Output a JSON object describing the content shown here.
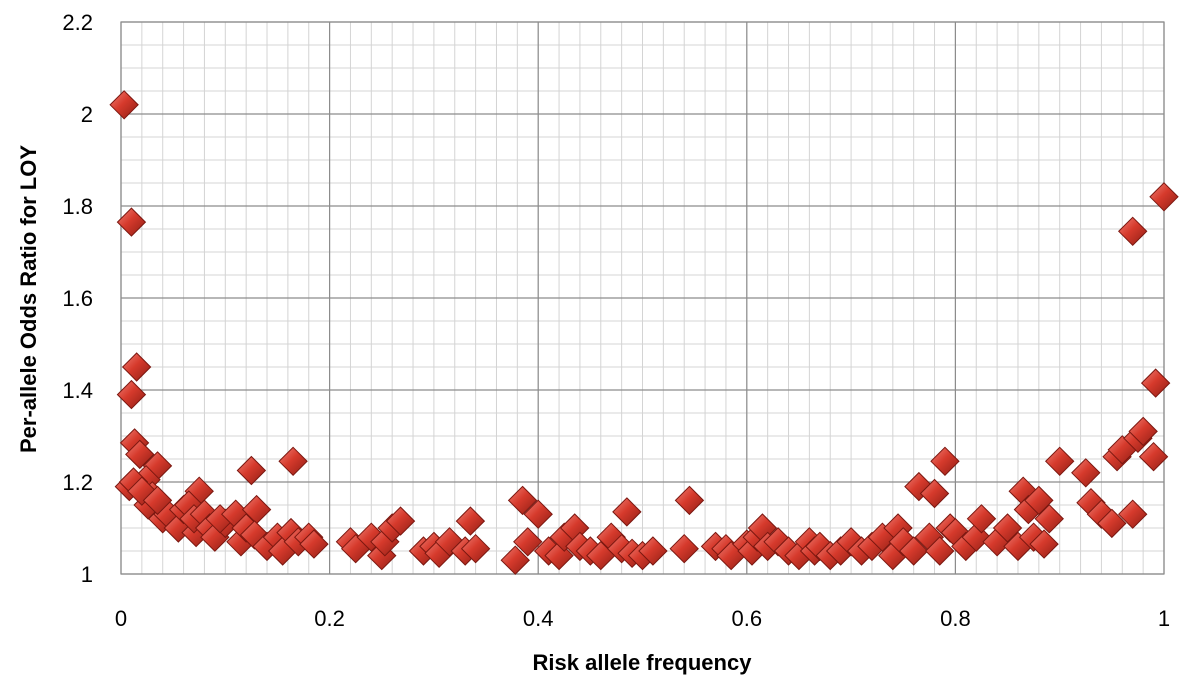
{
  "chart_data": {
    "type": "scatter",
    "title": "",
    "xlabel": "Risk allele frequency",
    "ylabel": "Per-allele Odds Ratio for LOY",
    "xlim": [
      0,
      1
    ],
    "ylim": [
      1,
      2.2
    ],
    "x_ticks": [
      0,
      0.2,
      0.4,
      0.6,
      0.8,
      1
    ],
    "x_tick_labels": [
      "0",
      "0.2",
      "0.4",
      "0.6",
      "0.8",
      "1"
    ],
    "y_ticks": [
      1,
      1.2,
      1.4,
      1.6,
      1.8,
      2,
      2.2
    ],
    "y_tick_labels": [
      "1",
      "1.2",
      "1.4",
      "1.6",
      "1.8",
      "2",
      "2.2"
    ],
    "grid": true,
    "minor_grid": true,
    "legend": "none",
    "marker": "diamond",
    "marker_color": "#c0392b",
    "series": [
      {
        "x": [
          0.003,
          0.01,
          0.015,
          0.01,
          0.013,
          0.008,
          0.018,
          0.035,
          0.024,
          0.012,
          0.03,
          0.026,
          0.02,
          0.04,
          0.045,
          0.035,
          0.055,
          0.06,
          0.075,
          0.072,
          0.065,
          0.07,
          0.08,
          0.085,
          0.09,
          0.1,
          0.095,
          0.11,
          0.115,
          0.125,
          0.12,
          0.13,
          0.128,
          0.14,
          0.15,
          0.155,
          0.163,
          0.165,
          0.17,
          0.18,
          0.185,
          0.22,
          0.225,
          0.24,
          0.25,
          0.253,
          0.26,
          0.268,
          0.29,
          0.3,
          0.305,
          0.315,
          0.33,
          0.335,
          0.34,
          0.378,
          0.385,
          0.39,
          0.4,
          0.41,
          0.42,
          0.425,
          0.435,
          0.44,
          0.45,
          0.46,
          0.47,
          0.48,
          0.485,
          0.49,
          0.5,
          0.51,
          0.54,
          0.545,
          0.57,
          0.58,
          0.585,
          0.6,
          0.605,
          0.61,
          0.615,
          0.62,
          0.63,
          0.64,
          0.65,
          0.66,
          0.665,
          0.67,
          0.68,
          0.69,
          0.7,
          0.71,
          0.72,
          0.73,
          0.74,
          0.745,
          0.75,
          0.76,
          0.765,
          0.775,
          0.78,
          0.785,
          0.79,
          0.795,
          0.8,
          0.81,
          0.82,
          0.825,
          0.84,
          0.85,
          0.86,
          0.865,
          0.87,
          0.875,
          0.88,
          0.885,
          0.89,
          0.9,
          0.925,
          0.93,
          0.94,
          0.95,
          0.955,
          0.96,
          0.97,
          0.97,
          0.975,
          0.98,
          0.99,
          0.992,
          1.0
        ],
        "y": [
          2.02,
          1.765,
          1.45,
          1.39,
          1.285,
          1.19,
          1.26,
          1.235,
          1.205,
          1.2,
          1.17,
          1.15,
          1.18,
          1.12,
          1.13,
          1.16,
          1.1,
          1.14,
          1.18,
          1.09,
          1.15,
          1.12,
          1.13,
          1.1,
          1.08,
          1.11,
          1.12,
          1.13,
          1.07,
          1.225,
          1.1,
          1.14,
          1.085,
          1.06,
          1.08,
          1.05,
          1.09,
          1.245,
          1.07,
          1.08,
          1.065,
          1.07,
          1.055,
          1.08,
          1.04,
          1.07,
          1.1,
          1.115,
          1.05,
          1.06,
          1.045,
          1.07,
          1.05,
          1.115,
          1.055,
          1.03,
          1.16,
          1.07,
          1.13,
          1.05,
          1.04,
          1.08,
          1.1,
          1.06,
          1.05,
          1.04,
          1.08,
          1.055,
          1.135,
          1.045,
          1.04,
          1.05,
          1.055,
          1.16,
          1.06,
          1.055,
          1.04,
          1.065,
          1.05,
          1.08,
          1.1,
          1.06,
          1.07,
          1.05,
          1.04,
          1.07,
          1.05,
          1.06,
          1.04,
          1.05,
          1.07,
          1.05,
          1.06,
          1.08,
          1.04,
          1.1,
          1.07,
          1.05,
          1.19,
          1.08,
          1.175,
          1.05,
          1.245,
          1.1,
          1.09,
          1.06,
          1.08,
          1.12,
          1.07,
          1.1,
          1.06,
          1.18,
          1.14,
          1.08,
          1.16,
          1.065,
          1.12,
          1.245,
          1.22,
          1.155,
          1.13,
          1.11,
          1.255,
          1.27,
          1.13,
          1.745,
          1.295,
          1.31,
          1.255,
          1.415,
          1.82
        ]
      }
    ]
  }
}
